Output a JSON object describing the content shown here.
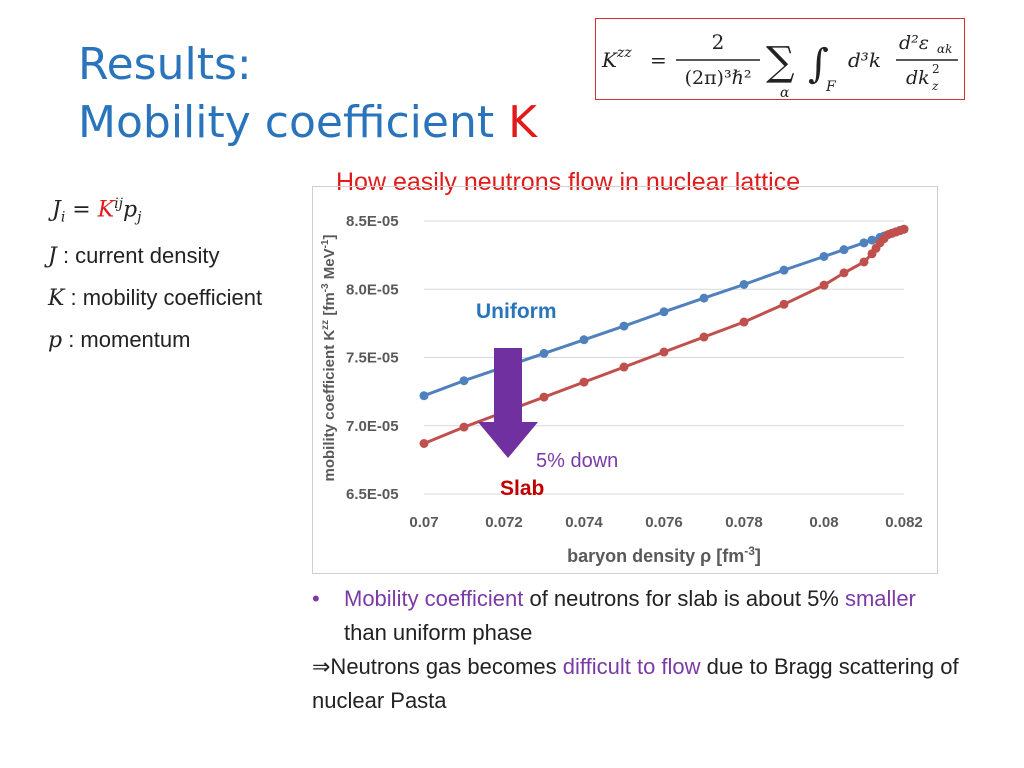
{
  "slide": {
    "title_line1": "Results:",
    "title_line2_prefix": "Mobility coefficient ",
    "title_line2_k": "K",
    "subtitle": "How easily neutrons flow in nuclear lattice"
  },
  "formula": {
    "lhs": "K",
    "lhs_sup": "zz",
    "equals": "=",
    "numerator": "2",
    "denominator": "(2π)³ℏ²",
    "sum": "∑",
    "sum_sub": "α",
    "integral": "∫",
    "int_sub": "F",
    "measure": "d³k",
    "deriv_num": "d²ε",
    "deriv_num_sub": "αk",
    "deriv_den": "dk",
    "deriv_den_sub": "z",
    "deriv_den_sup": "2"
  },
  "definitions": {
    "equation": {
      "J": "J",
      "i": "i",
      "eq": " = ",
      "K": "K",
      "ij": "ij",
      "p": "p",
      "j": "j"
    },
    "items": [
      {
        "symbol": "J",
        "text": " : current density"
      },
      {
        "symbol": "K",
        "text": " : mobility coefficient"
      },
      {
        "symbol": "p",
        "text": " : momentum"
      }
    ]
  },
  "notes": {
    "bullet_marker": "•",
    "b1_a": "Mobility coefficient",
    "b1_b": " of neutrons for slab is about 5% ",
    "b1_c": "smaller",
    "b1_d": " than uniform phase",
    "b2_a": "⇒Neutrons gas becomes ",
    "b2_b": "difficult to flow",
    "b2_c": " due to Bragg scattering of nuclear Pasta"
  },
  "chart_data": {
    "type": "line",
    "xlabel": "baryon density ρ [fm",
    "xlabel_sup": "-3",
    "xlabel_end": "]",
    "ylabel": "mobility coefficient K",
    "ylabel_sup1": "zz",
    "ylabel_mid": " [fm",
    "ylabel_sup2": "-3",
    "ylabel_end": " MeV",
    "ylabel_sup3": "-1",
    "ylabel_close": "]",
    "xlim": [
      0.07,
      0.082
    ],
    "ylim": [
      6.5e-05,
      8.5e-05
    ],
    "x_ticks": [
      "0.07",
      "0.072",
      "0.074",
      "0.076",
      "0.078",
      "0.08",
      "0.082"
    ],
    "y_ticks": [
      "6.5E-05",
      "7.0E-05",
      "7.5E-05",
      "8.0E-05",
      "8.5E-05"
    ],
    "grid": true,
    "series": [
      {
        "name": "Uniform",
        "color": "#4f81bd",
        "label_color": "#2a74bb",
        "x": [
          0.07,
          0.071,
          0.072,
          0.073,
          0.074,
          0.075,
          0.076,
          0.077,
          0.078,
          0.079,
          0.08,
          0.0805,
          0.081,
          0.0812,
          0.0814,
          0.0815,
          0.0817,
          0.0818,
          0.0819,
          0.082
        ],
        "y": [
          7.22e-05,
          7.33e-05,
          7.43e-05,
          7.53e-05,
          7.63e-05,
          7.73e-05,
          7.835e-05,
          7.935e-05,
          8.035e-05,
          8.14e-05,
          8.24e-05,
          8.29e-05,
          8.34e-05,
          8.36e-05,
          8.38e-05,
          8.39e-05,
          8.41e-05,
          8.42e-05,
          8.43e-05,
          8.44e-05
        ]
      },
      {
        "name": "Slab",
        "color": "#c0504d",
        "label_color": "#c00000",
        "x": [
          0.07,
          0.071,
          0.072,
          0.073,
          0.074,
          0.075,
          0.076,
          0.077,
          0.078,
          0.079,
          0.08,
          0.0805,
          0.081,
          0.0812,
          0.0813,
          0.0814,
          0.0815,
          0.0816,
          0.0817,
          0.0818,
          0.0819,
          0.082
        ],
        "y": [
          6.87e-05,
          6.99e-05,
          7.1e-05,
          7.21e-05,
          7.32e-05,
          7.43e-05,
          7.54e-05,
          7.65e-05,
          7.76e-05,
          7.89e-05,
          8.03e-05,
          8.12e-05,
          8.2e-05,
          8.26e-05,
          8.3e-05,
          8.34e-05,
          8.37e-05,
          8.4e-05,
          8.41e-05,
          8.42e-05,
          8.43e-05,
          8.44e-05
        ]
      }
    ],
    "annotation": {
      "text": "5% down",
      "color": "#7b3aa6"
    }
  }
}
